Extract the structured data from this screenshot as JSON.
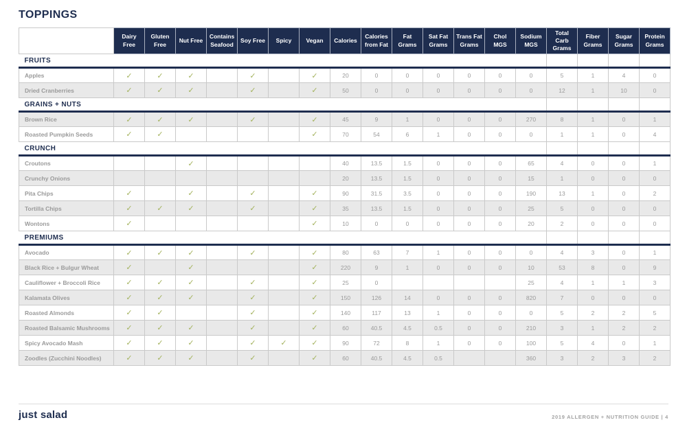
{
  "page": {
    "title": "TOPPINGS",
    "footer": {
      "logo": "just salad",
      "note": "2019 ALLERGEN + NUTRITION GUIDE  |  4"
    }
  },
  "colors": {
    "navy": "#1e2d4f",
    "check_olive": "#a3b25c",
    "row_shade": "#e9e9e9",
    "grid_border": "#c9c9c9",
    "cell_text": "#9a9a9a"
  },
  "table": {
    "check_symbol": "✓",
    "attr_headers": [
      "Dairy Free",
      "Gluten Free",
      "Nut Free",
      "Contains Seafood",
      "Soy Free",
      "Spicy",
      "Vegan"
    ],
    "value_headers": [
      "Calories",
      "Calories from Fat",
      "Fat Grams",
      "Sat Fat Grams",
      "Trans Fat Grams",
      "Chol MGS",
      "Sodium MGS",
      "Total Carb Grams",
      "Fiber Grams",
      "Sugar Grams",
      "Protein Grams"
    ],
    "sections": [
      {
        "name": "FRUITS",
        "rows": [
          {
            "name": "Apples",
            "shaded": false,
            "checks": [
              1,
              1,
              1,
              0,
              1,
              0,
              1
            ],
            "values": [
              "20",
              "0",
              "0",
              "0",
              "0",
              "0",
              "0",
              "5",
              "1",
              "4",
              "0"
            ]
          },
          {
            "name": "Dried Cranberries",
            "shaded": true,
            "checks": [
              1,
              1,
              1,
              0,
              1,
              0,
              1
            ],
            "values": [
              "50",
              "0",
              "0",
              "0",
              "0",
              "0",
              "0",
              "12",
              "1",
              "10",
              "0"
            ]
          }
        ]
      },
      {
        "name": "GRAINS + NUTS",
        "rows": [
          {
            "name": "Brown Rice",
            "shaded": true,
            "checks": [
              1,
              1,
              1,
              0,
              1,
              0,
              1
            ],
            "values": [
              "45",
              "9",
              "1",
              "0",
              "0",
              "0",
              "270",
              "8",
              "1",
              "0",
              "1"
            ]
          },
          {
            "name": "Roasted Pumpkin Seeds",
            "shaded": false,
            "checks": [
              1,
              1,
              0,
              0,
              0,
              0,
              1
            ],
            "values": [
              "70",
              "54",
              "6",
              "1",
              "0",
              "0",
              "0",
              "1",
              "1",
              "0",
              "4"
            ]
          }
        ]
      },
      {
        "name": "CRUNCH",
        "rows": [
          {
            "name": "Croutons",
            "shaded": false,
            "checks": [
              0,
              0,
              1,
              0,
              0,
              0,
              0
            ],
            "values": [
              "40",
              "13.5",
              "1.5",
              "0",
              "0",
              "0",
              "65",
              "4",
              "0",
              "0",
              "1"
            ]
          },
          {
            "name": "Crunchy Onions",
            "shaded": true,
            "checks": [
              0,
              0,
              0,
              0,
              0,
              0,
              0
            ],
            "values": [
              "20",
              "13.5",
              "1.5",
              "0",
              "0",
              "0",
              "15",
              "1",
              "0",
              "0",
              "0"
            ]
          },
          {
            "name": "Pita Chips",
            "shaded": false,
            "checks": [
              1,
              0,
              1,
              0,
              1,
              0,
              1
            ],
            "values": [
              "90",
              "31.5",
              "3.5",
              "0",
              "0",
              "0",
              "190",
              "13",
              "1",
              "0",
              "2"
            ]
          },
          {
            "name": "Tortilla Chips",
            "shaded": true,
            "checks": [
              1,
              1,
              1,
              0,
              1,
              0,
              1
            ],
            "values": [
              "35",
              "13.5",
              "1.5",
              "0",
              "0",
              "0",
              "25",
              "5",
              "0",
              "0",
              "0"
            ]
          },
          {
            "name": "Wontons",
            "shaded": false,
            "checks": [
              1,
              0,
              0,
              0,
              0,
              0,
              1
            ],
            "values": [
              "10",
              "0",
              "0",
              "0",
              "0",
              "0",
              "20",
              "2",
              "0",
              "0",
              "0"
            ]
          }
        ]
      },
      {
        "name": "PREMIUMS",
        "rows": [
          {
            "name": "Avocado",
            "shaded": false,
            "checks": [
              1,
              1,
              1,
              0,
              1,
              0,
              1
            ],
            "values": [
              "80",
              "63",
              "7",
              "1",
              "0",
              "0",
              "0",
              "4",
              "3",
              "0",
              "1"
            ]
          },
          {
            "name": "Black Rice + Bulgur Wheat",
            "shaded": true,
            "checks": [
              1,
              0,
              1,
              0,
              0,
              0,
              1
            ],
            "values": [
              "220",
              "9",
              "1",
              "0",
              "0",
              "0",
              "10",
              "53",
              "8",
              "0",
              "9"
            ]
          },
          {
            "name": "Cauliflower + Broccoli Rice",
            "shaded": false,
            "checks": [
              1,
              1,
              1,
              0,
              1,
              0,
              1
            ],
            "values": [
              "25",
              "0",
              "",
              "",
              "",
              "",
              "25",
              "4",
              "1",
              "1",
              "3"
            ]
          },
          {
            "name": "Kalamata Olives",
            "shaded": true,
            "checks": [
              1,
              1,
              1,
              0,
              1,
              0,
              1
            ],
            "values": [
              "150",
              "126",
              "14",
              "0",
              "0",
              "0",
              "820",
              "7",
              "0",
              "0",
              "0"
            ]
          },
          {
            "name": "Roasted Almonds",
            "shaded": false,
            "checks": [
              1,
              1,
              0,
              0,
              1,
              0,
              1
            ],
            "values": [
              "140",
              "117",
              "13",
              "1",
              "0",
              "0",
              "0",
              "5",
              "2",
              "2",
              "5"
            ]
          },
          {
            "name": "Roasted Balsamic Mushrooms",
            "shaded": true,
            "checks": [
              1,
              1,
              1,
              0,
              1,
              0,
              1
            ],
            "values": [
              "60",
              "40.5",
              "4.5",
              "0.5",
              "0",
              "0",
              "210",
              "3",
              "1",
              "2",
              "2"
            ]
          },
          {
            "name": "Spicy Avocado Mash",
            "shaded": false,
            "checks": [
              1,
              1,
              1,
              0,
              1,
              1,
              1
            ],
            "values": [
              "90",
              "72",
              "8",
              "1",
              "0",
              "0",
              "100",
              "5",
              "4",
              "0",
              "1"
            ]
          },
          {
            "name": "Zoodles (Zucchini Noodles)",
            "shaded": true,
            "checks": [
              1,
              1,
              1,
              0,
              1,
              0,
              1
            ],
            "values": [
              "60",
              "40.5",
              "4.5",
              "0.5",
              "",
              "",
              "360",
              "3",
              "2",
              "3",
              "2"
            ]
          }
        ]
      }
    ]
  }
}
